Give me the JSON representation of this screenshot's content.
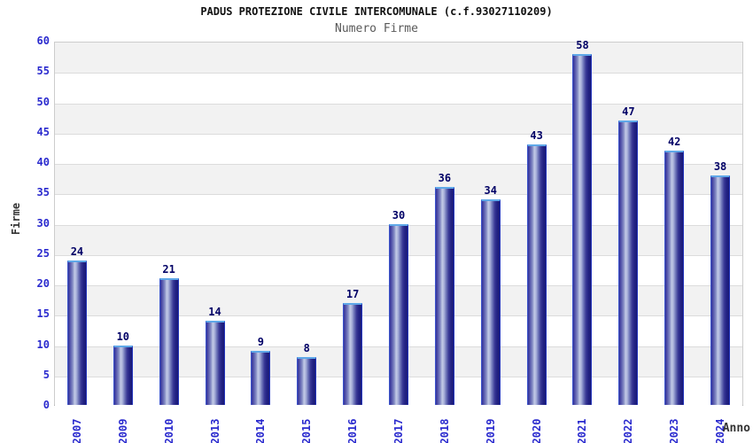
{
  "chart_data": {
    "type": "bar",
    "title": "PADUS PROTEZIONE CIVILE INTERCOMUNALE (c.f.93027110209)",
    "subtitle": "Numero Firme",
    "xlabel": "Anno",
    "ylabel": "Firme",
    "categories": [
      "2007",
      "2009",
      "2010",
      "2013",
      "2014",
      "2015",
      "2016",
      "2017",
      "2018",
      "2019",
      "2020",
      "2021",
      "2022",
      "2023",
      "2024"
    ],
    "values": [
      24,
      10,
      21,
      14,
      9,
      8,
      17,
      30,
      36,
      34,
      43,
      58,
      47,
      42,
      38
    ],
    "ylim": [
      0,
      60
    ],
    "ytick_step": 5,
    "grid": "horizontal-bands",
    "legend": "none",
    "colors": {
      "bar_dark": "#1b1b76",
      "bar_light": "#c2cae6",
      "bar_edge": "#2334bb",
      "bar_top_cap": "#5fa8e8",
      "tick_label": "#2a2ace",
      "value_label": "#000066",
      "band_gray": "#f2f2f2",
      "band_white": "#ffffff",
      "title_color": "#111111",
      "subtitle_color": "#595959",
      "axis_title_color": "#333333"
    }
  }
}
